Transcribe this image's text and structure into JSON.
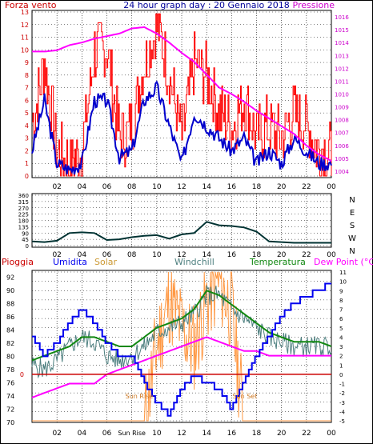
{
  "header": {
    "left_title": "Forza vento",
    "center_title": "24 hour graph day : 20 Gennaio 2018",
    "right_title": "Pressione"
  },
  "colors": {
    "wind": "#ff0000",
    "wind_avg": "#0000cc",
    "pressure": "#ff00ff",
    "direction": "#003333",
    "rain": "#cc0000",
    "humidity": "#0000ee",
    "solar": "#ff9944",
    "windchill": "#4d7f7f",
    "temperature": "#118811",
    "dewpoint": "#ff00ff",
    "grid": "#000000",
    "frame": "#000000",
    "title": "#000099"
  },
  "chart_data": [
    {
      "type": "line",
      "panel": "wind-pressure",
      "xaxis_ticks": [
        "02",
        "04",
        "06",
        "08",
        "10",
        "12",
        "14",
        "16",
        "18",
        "20",
        "22",
        "00"
      ],
      "left_axis": {
        "label": "Forza vento",
        "ylim": [
          0,
          13
        ],
        "ticks": [
          "0",
          "1",
          "2",
          "3",
          "4",
          "5",
          "6",
          "7",
          "8",
          "9",
          "10",
          "11",
          "12",
          "13"
        ]
      },
      "right_axis": {
        "label": "Pressione",
        "ylim": [
          1003.5,
          1016.5
        ],
        "ticks": [
          "1004",
          "1005",
          "1006",
          "1007",
          "1008",
          "1009",
          "1010",
          "1011",
          "1012",
          "1013",
          "1014",
          "1015",
          "1016"
        ]
      },
      "x_hours": [
        0,
        1,
        2,
        3,
        4,
        5,
        6,
        7,
        8,
        9,
        10,
        11,
        12,
        13,
        14,
        15,
        16,
        17,
        18,
        19,
        20,
        21,
        22,
        23,
        24
      ],
      "series": [
        {
          "role": "gust",
          "axis": "left",
          "values": [
            4,
            9,
            2,
            1,
            2,
            10,
            10,
            3,
            4,
            9,
            12,
            8,
            3,
            9,
            8,
            5,
            4,
            6,
            3,
            4,
            3,
            5,
            4,
            2,
            2
          ]
        },
        {
          "role": "average",
          "axis": "left",
          "values": [
            2,
            6,
            1,
            0.5,
            1,
            6,
            6,
            1.5,
            2,
            6,
            7,
            4,
            1,
            5,
            4,
            3,
            2,
            3,
            1,
            2,
            1,
            3,
            2,
            1,
            1
          ]
        },
        {
          "role": "pressure",
          "axis": "right",
          "values": [
            1013.3,
            1013.3,
            1013.4,
            1013.8,
            1014.0,
            1014.3,
            1014.5,
            1014.7,
            1015.1,
            1015.2,
            1014.7,
            1014.0,
            1013.2,
            1012.5,
            1011.5,
            1010.5,
            1010.0,
            1009.4,
            1008.7,
            1008.1,
            1007.5,
            1006.9,
            1006.0,
            1005.3,
            1004.8
          ]
        }
      ]
    },
    {
      "type": "line",
      "panel": "wind-direction",
      "ylim": [
        0,
        360
      ],
      "ticks": [
        "0",
        "45",
        "90",
        "135",
        "180",
        "225",
        "270",
        "315",
        "360"
      ],
      "compass": [
        "N",
        "W",
        "S",
        "E",
        "N"
      ],
      "xaxis_ticks": [
        "02",
        "04",
        "06",
        "08",
        "10",
        "12",
        "14",
        "16",
        "18",
        "20",
        "22",
        "00"
      ],
      "x_hours": [
        0,
        1,
        2,
        3,
        4,
        5,
        6,
        7,
        8,
        9,
        10,
        11,
        12,
        13,
        14,
        15,
        16,
        17,
        18,
        19,
        20,
        21,
        22,
        23,
        24
      ],
      "series": [
        {
          "role": "direction",
          "values": [
            30,
            25,
            35,
            90,
            95,
            90,
            40,
            45,
            60,
            70,
            75,
            50,
            80,
            90,
            170,
            145,
            140,
            130,
            100,
            30,
            25,
            20,
            20,
            20,
            20
          ]
        }
      ]
    },
    {
      "type": "line",
      "panel": "temperature-humidity",
      "header_labels": [
        "Pioggia",
        "Umidita",
        "Solar",
        "Windchill",
        "Temperatura",
        "Dew Point (°C)"
      ],
      "left_axis": {
        "ylim": [
          70,
          93
        ],
        "ticks": [
          "70",
          "72",
          "74",
          "76",
          "78",
          "80",
          "82",
          "84",
          "86",
          "88",
          "90",
          "92"
        ]
      },
      "right_axis": {
        "ylim": [
          -5,
          11
        ],
        "ticks": [
          "-5",
          "-4",
          "-3",
          "-2",
          "-1",
          "0",
          "1",
          "2",
          "3",
          "4",
          "5",
          "6",
          "7",
          "8",
          "9",
          "10",
          "11"
        ]
      },
      "xaxis_ticks": [
        "02",
        "04",
        "06",
        "Sun Rise",
        "10",
        "12",
        "14",
        "16",
        "18",
        "20",
        "22",
        "00"
      ],
      "annotations": [
        "Sun Rise",
        "Sun Set"
      ],
      "rain_label": "0",
      "x_hours": [
        0,
        1,
        2,
        3,
        4,
        5,
        6,
        7,
        8,
        9,
        10,
        11,
        12,
        13,
        14,
        15,
        16,
        17,
        18,
        19,
        20,
        21,
        22,
        23,
        24
      ],
      "series": [
        {
          "role": "humidity",
          "axis": "left",
          "values": [
            83,
            80,
            82,
            85,
            87,
            85,
            82,
            80,
            80,
            76,
            73,
            71,
            75,
            77,
            76,
            75,
            72,
            76,
            80,
            83,
            86,
            88,
            89,
            90,
            91
          ]
        },
        {
          "role": "solar",
          "axis": "right",
          "values": [
            -5,
            -5,
            -5,
            -5,
            -5,
            -5,
            -5,
            -5,
            -5,
            -5,
            3,
            8,
            5,
            3,
            8,
            10,
            7,
            -5,
            -5,
            -5,
            -5,
            -5,
            -5,
            -5,
            -5
          ]
        },
        {
          "role": "windchill",
          "axis": "right",
          "values": [
            1,
            0.5,
            1.5,
            3,
            4,
            3.5,
            2,
            1.5,
            2,
            3,
            4.5,
            5,
            5.5,
            6.5,
            8.5,
            8.5,
            7,
            6,
            5,
            4,
            3.5,
            3,
            3,
            3,
            3
          ]
        },
        {
          "role": "temperature",
          "axis": "right",
          "values": [
            1.5,
            2,
            2.5,
            3,
            4,
            4,
            3.5,
            3,
            3,
            4,
            5,
            5.5,
            6,
            7,
            9,
            8.5,
            7.5,
            6.5,
            5.5,
            4.5,
            4,
            3.5,
            3.5,
            3.5,
            3
          ]
        },
        {
          "role": "dewpoint",
          "axis": "right",
          "values": [
            -2.5,
            -2,
            -1.5,
            -1,
            -1,
            -1,
            0,
            0.5,
            1,
            1.5,
            2,
            2.5,
            3,
            3.5,
            4,
            3.5,
            3,
            2.5,
            2.5,
            2,
            2,
            2,
            2,
            2,
            2
          ]
        },
        {
          "role": "rain",
          "axis": "right",
          "values": [
            0,
            0,
            0,
            0,
            0,
            0,
            0,
            0,
            0,
            0,
            0,
            0,
            0,
            0,
            0,
            0,
            0,
            0,
            0,
            0,
            0,
            0,
            0,
            0,
            0
          ]
        }
      ]
    }
  ]
}
